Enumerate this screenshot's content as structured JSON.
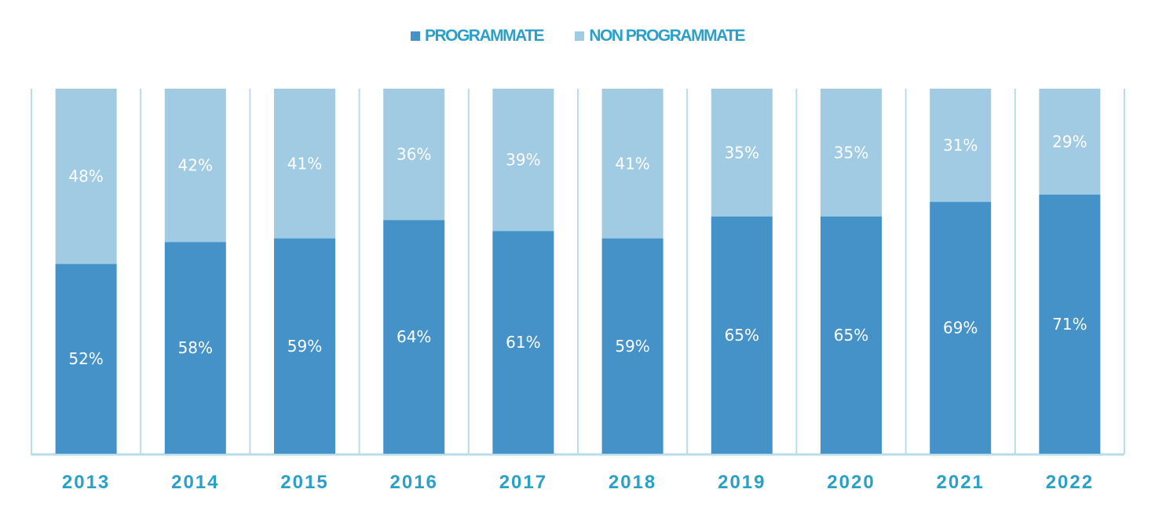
{
  "legend": {
    "programmate": "PROGRAMMATE",
    "non_programmate": "NON PROGRAMMATE"
  },
  "colors": {
    "programmate": "#4592c9",
    "non_programmate": "#a1cbe3",
    "year_text": "#2aa0c9",
    "legend_text": "#2aa0c9",
    "frame": "#b9dced"
  },
  "chart_data": {
    "type": "bar",
    "stacked": true,
    "categories": [
      "2013",
      "2014",
      "2015",
      "2016",
      "2017",
      "2018",
      "2019",
      "2020",
      "2021",
      "2022"
    ],
    "series": [
      {
        "name": "PROGRAMMATE",
        "values": [
          52,
          58,
          59,
          64,
          61,
          59,
          65,
          65,
          69,
          71
        ],
        "labels": [
          "52%",
          "58%",
          "59%",
          "64%",
          "61%",
          "59%",
          "65%",
          "65%",
          "69%",
          "71%"
        ]
      },
      {
        "name": "NON PROGRAMMATE",
        "values": [
          48,
          42,
          41,
          36,
          39,
          41,
          35,
          35,
          31,
          29
        ],
        "labels": [
          "48%",
          "42%",
          "41%",
          "36%",
          "39%",
          "41%",
          "35%",
          "35%",
          "31%",
          "29%"
        ]
      }
    ],
    "ylim": [
      0,
      100
    ],
    "legend_position": "top-center",
    "grid": false
  }
}
